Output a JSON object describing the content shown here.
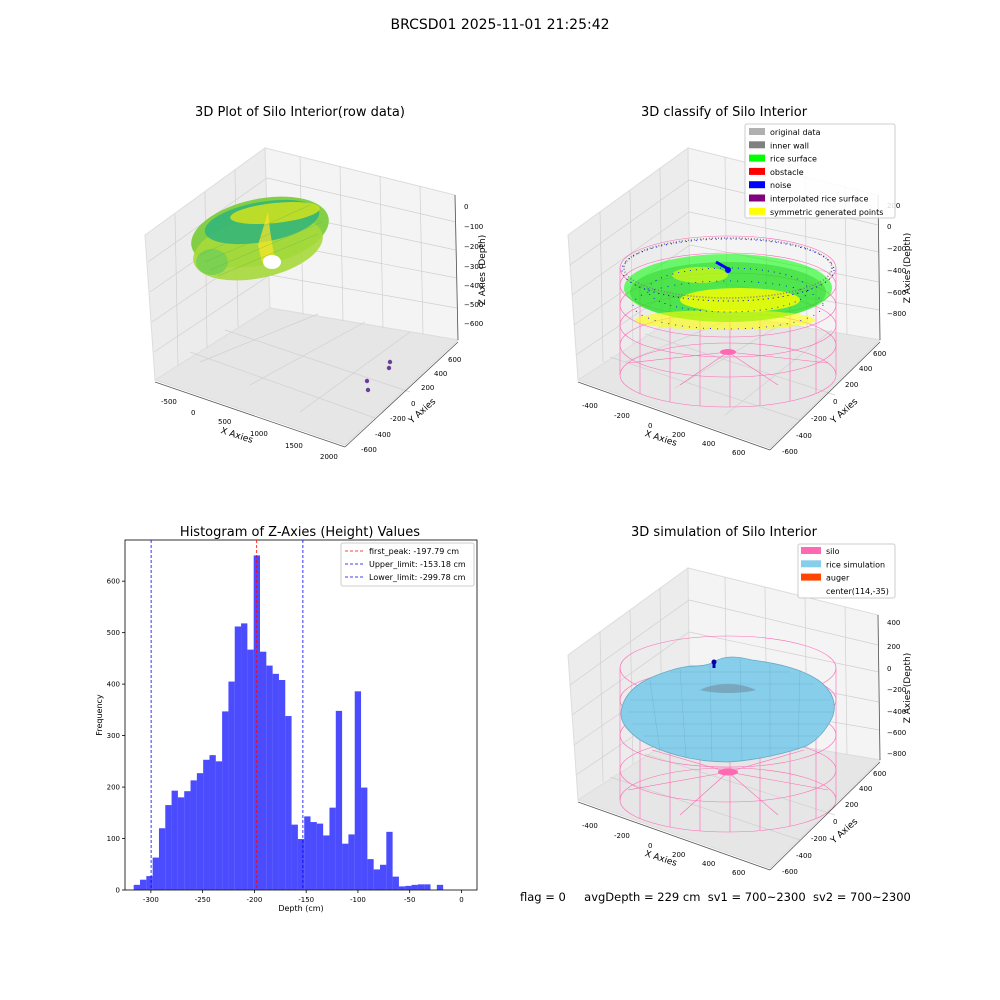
{
  "suptitle": "BRCSD01 2025-11-01 21:25:42",
  "status": {
    "flag": "flag = 0",
    "avg_depth": "avgDepth = 229 cm",
    "sv1": "sv1 = 700~2300",
    "sv2": "sv2 = 700~2300"
  },
  "chart_data": [
    {
      "type": "scatter",
      "title": "3D Plot of Silo Interior(row data)",
      "xlabel": "X Axies",
      "ylabel": "Y Axies",
      "zlabel": "Z Axies (Depth)",
      "xticks": [
        "-500",
        "0",
        "500",
        "1000",
        "1500",
        "2000"
      ],
      "yticks": [
        "-600",
        "-400",
        "-200",
        "0",
        "200",
        "400",
        "600"
      ],
      "zticks": [
        "0",
        "−100",
        "−200",
        "−300",
        "−400",
        "−500",
        "−600"
      ],
      "colormap": "viridis",
      "outlier_points": [
        {
          "x": 1700,
          "y": 550,
          "z": -600
        },
        {
          "x": 1720,
          "y": 480,
          "z": -600
        },
        {
          "x": 1600,
          "y": 300,
          "z": -600
        },
        {
          "x": 1620,
          "y": 230,
          "z": -600
        }
      ]
    },
    {
      "type": "scatter",
      "title": "3D classify of Silo Interior",
      "xlabel": "X Axies",
      "ylabel": "Y Axies",
      "zlabel": "Z Axies (Depth)",
      "xticks": [
        "-400",
        "-200",
        "0",
        "200",
        "400",
        "600"
      ],
      "yticks": [
        "-600",
        "-400",
        "-200",
        "0",
        "200",
        "400",
        "600"
      ],
      "zticks": [
        "200",
        "0",
        "−200",
        "−400",
        "−600",
        "−800"
      ],
      "legend": [
        {
          "label": "original data",
          "color": "#b0b0b0"
        },
        {
          "label": "inner wall",
          "color": "#808080"
        },
        {
          "label": "rice surface",
          "color": "#00ff00"
        },
        {
          "label": "obstacle",
          "color": "#ff0000"
        },
        {
          "label": "noise",
          "color": "#0000ff"
        },
        {
          "label": "interpolated rice surface",
          "color": "#800080"
        },
        {
          "label": "symmetric generated points",
          "color": "#ffff00"
        }
      ],
      "legend_loc": "upper right",
      "silo_wire_color": "#ff69b4"
    },
    {
      "type": "bar",
      "title": "Histogram of Z-Axies (Height) Values",
      "xlabel": "Depth (cm)",
      "ylabel": "Frequency",
      "xlim": [
        -325,
        15
      ],
      "ylim": [
        0,
        680
      ],
      "xticks": [
        -300,
        -250,
        -200,
        -150,
        -100,
        -50,
        0
      ],
      "yticks": [
        0,
        100,
        200,
        300,
        400,
        500,
        600
      ],
      "bar_color": "#0000ff",
      "bin_width": 6.1,
      "bin_starts": [
        -316.6,
        -310.5,
        -304.4,
        -298.3,
        -292.2,
        -286.1,
        -280.0,
        -273.9,
        -267.8,
        -261.7,
        -255.6,
        -249.5,
        -243.4,
        -237.3,
        -231.2,
        -225.1,
        -219.0,
        -212.9,
        -206.8,
        -200.7,
        -194.6,
        -188.5,
        -182.4,
        -176.3,
        -170.2,
        -164.1,
        -158.0,
        -151.9,
        -145.8,
        -139.7,
        -133.6,
        -127.5,
        -121.4,
        -115.3,
        -109.2,
        -103.1,
        -97.0,
        -90.9,
        -84.8,
        -78.7,
        -72.6,
        -66.5,
        -60.4,
        -54.3,
        -48.2,
        -42.1,
        -36.0,
        -29.9,
        -23.8,
        -17.7,
        -11.6,
        -5.5
      ],
      "values": [
        10,
        20,
        27,
        63,
        120,
        165,
        193,
        180,
        192,
        213,
        227,
        253,
        262,
        250,
        347,
        405,
        512,
        518,
        467,
        650,
        463,
        436,
        420,
        408,
        338,
        127,
        99,
        143,
        132,
        129,
        106,
        160,
        348,
        90,
        108,
        386,
        199,
        60,
        40,
        49,
        113,
        26,
        7,
        8,
        10,
        11,
        11,
        0,
        10,
        0,
        0,
        0
      ],
      "vlines": [
        {
          "label": "first_peak: -197.79 cm",
          "x": -197.79,
          "color": "#ff0000"
        },
        {
          "label": "Upper_limit: -153.18 cm",
          "x": -153.18,
          "color": "#0000ff"
        },
        {
          "label": "Lower_limit: -299.78 cm",
          "x": -299.78,
          "color": "#0000ff"
        }
      ],
      "legend_loc": "upper right"
    },
    {
      "type": "surface",
      "title": "3D simulation of Silo Interior",
      "xlabel": "X Axies",
      "ylabel": "Y Axies",
      "zlabel": "Z Axies (Depth)",
      "xticks": [
        "-400",
        "-200",
        "0",
        "200",
        "400",
        "600"
      ],
      "yticks": [
        "-600",
        "-400",
        "-200",
        "0",
        "200",
        "400",
        "600"
      ],
      "zticks": [
        "400",
        "200",
        "0",
        "−200",
        "−400",
        "−600",
        "−800"
      ],
      "legend": [
        {
          "label": "silo",
          "color": "#ff69b4"
        },
        {
          "label": "rice simulation",
          "color": "#87ceeb"
        },
        {
          "label": "auger",
          "color": "#ff4500"
        },
        {
          "label": "center(114,-35)",
          "color": ""
        }
      ],
      "legend_loc": "upper right"
    }
  ]
}
